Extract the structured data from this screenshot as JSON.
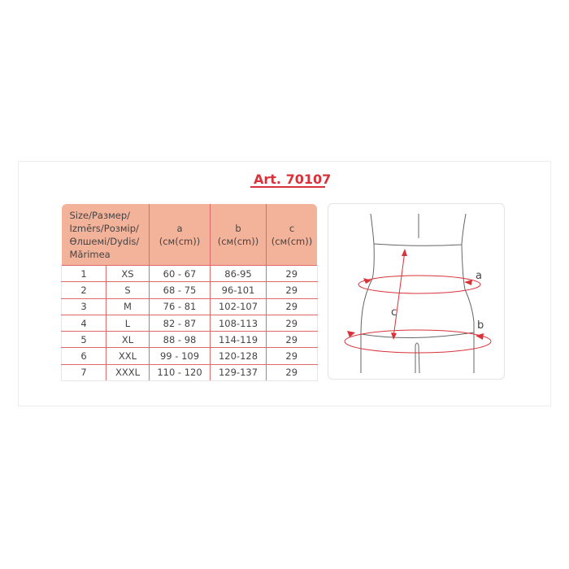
{
  "article": "Art. 70107",
  "table": {
    "headers": [
      "Size/Размер/ Izmērs/Розмір/ Өлшемі/Dydis/ Mărimea",
      "a (см(cm))",
      "b (см(cm))",
      "c (см(cm))"
    ],
    "header_parts": {
      "a": "a",
      "b": "b",
      "c": "c",
      "unit": "(см(cm))"
    },
    "rows": [
      [
        "1",
        "XS",
        "60 - 67",
        "86-95",
        "29"
      ],
      [
        "2",
        "S",
        "68 - 75",
        "96-101",
        "29"
      ],
      [
        "3",
        "M",
        "76 - 81",
        "102-107",
        "29"
      ],
      [
        "4",
        "L",
        "82 - 87",
        "108-113",
        "29"
      ],
      [
        "5",
        "XL",
        "88 - 98",
        "114-119",
        "29"
      ],
      [
        "6",
        "XXL",
        "99 - 109",
        "120-128",
        "29"
      ],
      [
        "7",
        "XXXL",
        "110 - 120",
        "129-137",
        "29"
      ]
    ]
  },
  "figure": {
    "label_a": "a",
    "label_b": "b",
    "label_c": "c"
  },
  "colors": {
    "accent": "#d8333a",
    "header_bg": "#f3b29a",
    "grid": "#e06a6a"
  }
}
